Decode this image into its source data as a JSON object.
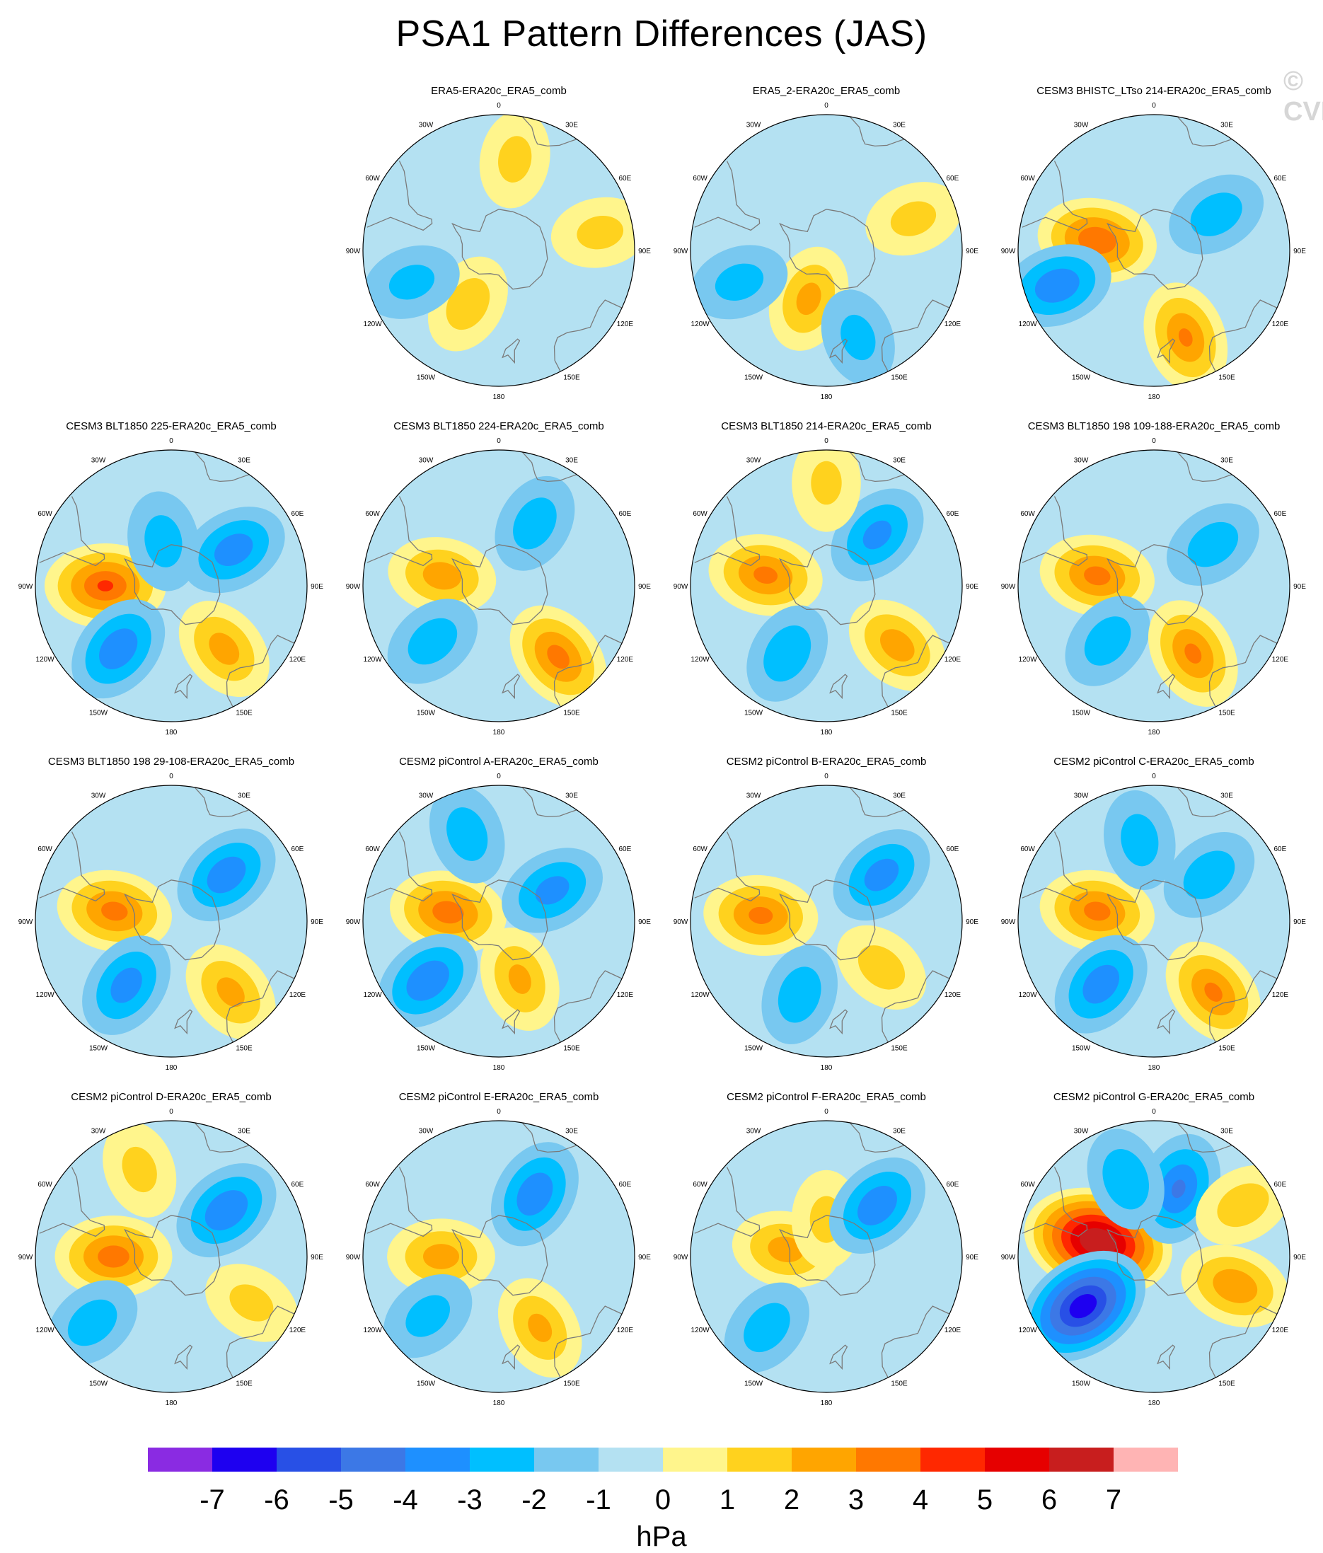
{
  "title": "PSA1 Pattern Differences (JAS)",
  "watermark": "© CVDP",
  "units": "hPa",
  "longitude_labels": [
    "0",
    "30E",
    "60E",
    "90E",
    "120E",
    "150E",
    "180",
    "150W",
    "120W",
    "90W",
    "60W",
    "30W"
  ],
  "colorbar": {
    "colors": [
      "#8a2be2",
      "#1e00f0",
      "#2850e6",
      "#3c78e6",
      "#1e90ff",
      "#00bfff",
      "#78c8f0",
      "#b4e1f2",
      "#fff58c",
      "#ffd21e",
      "#ffa500",
      "#ff7800",
      "#ff2800",
      "#e60000",
      "#c81e1e",
      "#ffb4b4"
    ],
    "tick_labels": [
      "-7",
      "-6",
      "-5",
      "-4",
      "-3",
      "-2",
      "-1",
      "0",
      "1",
      "2",
      "3",
      "4",
      "5",
      "6",
      "7"
    ]
  },
  "panels": [
    {
      "title": "ERA5-ERA20c_ERA5_comb",
      "row": 0,
      "col": 1,
      "features": [
        {
          "kind": "pos",
          "lon": 10,
          "lat": -45,
          "amp": 1.3
        },
        {
          "kind": "pos",
          "lon": 80,
          "lat": -40,
          "amp": 1.3
        },
        {
          "kind": "pos",
          "lon": -150,
          "lat": -60,
          "amp": 1.6
        },
        {
          "kind": "neg",
          "lon": -110,
          "lat": -45,
          "amp": 1.3
        }
      ]
    },
    {
      "title": "ERA5_2-ERA20c_ERA5_comb",
      "row": 0,
      "col": 2,
      "features": [
        {
          "kind": "pos",
          "lon": 70,
          "lat": -45,
          "amp": 1.3
        },
        {
          "kind": "pos",
          "lon": -160,
          "lat": -65,
          "amp": 2.3
        },
        {
          "kind": "neg",
          "lon": -110,
          "lat": -45,
          "amp": 1.4
        },
        {
          "kind": "neg",
          "lon": 160,
          "lat": -45,
          "amp": 1.3
        }
      ]
    },
    {
      "title": "CESM3 BHISTC_LTso 214-ERA20c_ERA5_comb",
      "row": 0,
      "col": 3,
      "features": [
        {
          "kind": "pos",
          "lon": -80,
          "lat": -62,
          "amp": 3.8
        },
        {
          "kind": "neg",
          "lon": -110,
          "lat": -40,
          "amp": 2.8
        },
        {
          "kind": "pos",
          "lon": 160,
          "lat": -45,
          "amp": 3.0
        },
        {
          "kind": "neg",
          "lon": 60,
          "lat": -55,
          "amp": 1.6
        }
      ]
    },
    {
      "title": "CESM3 BLT1850 225-ERA20c_ERA5_comb",
      "row": 1,
      "col": 0,
      "features": [
        {
          "kind": "pos",
          "lon": -90,
          "lat": -58,
          "amp": 4.0
        },
        {
          "kind": "neg",
          "lon": -140,
          "lat": -50,
          "amp": 2.8
        },
        {
          "kind": "pos",
          "lon": 140,
          "lat": -50,
          "amp": 2.4
        },
        {
          "kind": "neg",
          "lon": 60,
          "lat": -55,
          "amp": 2.6
        },
        {
          "kind": "neg",
          "lon": -10,
          "lat": -68,
          "amp": 1.5
        }
      ]
    },
    {
      "title": "CESM3 BLT1850 224-ERA20c_ERA5_comb",
      "row": 1,
      "col": 1,
      "features": [
        {
          "kind": "pos",
          "lon": -80,
          "lat": -62,
          "amp": 2.5
        },
        {
          "kind": "pos",
          "lon": 140,
          "lat": -45,
          "amp": 3.3
        },
        {
          "kind": "neg",
          "lon": -130,
          "lat": -48,
          "amp": 1.6
        },
        {
          "kind": "neg",
          "lon": 30,
          "lat": -55,
          "amp": 1.6
        }
      ]
    },
    {
      "title": "CESM3 BLT1850 214-ERA20c_ERA5_comb",
      "row": 1,
      "col": 2,
      "features": [
        {
          "kind": "pos",
          "lon": -80,
          "lat": -60,
          "amp": 3.2
        },
        {
          "kind": "neg",
          "lon": -150,
          "lat": -52,
          "amp": 1.8
        },
        {
          "kind": "pos",
          "lon": 130,
          "lat": -45,
          "amp": 2.5
        },
        {
          "kind": "neg",
          "lon": 45,
          "lat": -55,
          "amp": 2.3
        },
        {
          "kind": "pos",
          "lon": 0,
          "lat": -40,
          "amp": 1.2
        }
      ]
    },
    {
      "title": "CESM3 BLT1850 198 109-188-ERA20c_ERA5_comb",
      "row": 1,
      "col": 3,
      "features": [
        {
          "kind": "pos",
          "lon": -80,
          "lat": -62,
          "amp": 3.3
        },
        {
          "kind": "neg",
          "lon": -140,
          "lat": -55,
          "amp": 1.6
        },
        {
          "kind": "pos",
          "lon": 150,
          "lat": -52,
          "amp": 3.1
        },
        {
          "kind": "neg",
          "lon": 55,
          "lat": -55,
          "amp": 1.6
        }
      ]
    },
    {
      "title": "CESM3 BLT1850 198 29-108-ERA20c_ERA5_comb",
      "row": 2,
      "col": 0,
      "features": [
        {
          "kind": "pos",
          "lon": -80,
          "lat": -62,
          "amp": 3.3
        },
        {
          "kind": "neg",
          "lon": -145,
          "lat": -52,
          "amp": 2.5
        },
        {
          "kind": "pos",
          "lon": 140,
          "lat": -45,
          "amp": 2.3
        },
        {
          "kind": "neg",
          "lon": 50,
          "lat": -55,
          "amp": 2.7
        }
      ]
    },
    {
      "title": "CESM2 piControl A-ERA20c_ERA5_comb",
      "row": 2,
      "col": 1,
      "features": [
        {
          "kind": "pos",
          "lon": -80,
          "lat": -65,
          "amp": 3.5
        },
        {
          "kind": "neg",
          "lon": -130,
          "lat": -45,
          "amp": 2.9
        },
        {
          "kind": "pos",
          "lon": 160,
          "lat": -60,
          "amp": 2.2
        },
        {
          "kind": "neg",
          "lon": 60,
          "lat": -60,
          "amp": 2.4
        },
        {
          "kind": "neg",
          "lon": -20,
          "lat": -45,
          "amp": 1.6
        }
      ]
    },
    {
      "title": "CESM2 piControl B-ERA20c_ERA5_comb",
      "row": 2,
      "col": 2,
      "features": [
        {
          "kind": "pos",
          "lon": -85,
          "lat": -58,
          "amp": 3.2
        },
        {
          "kind": "neg",
          "lon": -160,
          "lat": -52,
          "amp": 1.7
        },
        {
          "kind": "neg",
          "lon": 50,
          "lat": -55,
          "amp": 2.5
        },
        {
          "kind": "pos",
          "lon": 130,
          "lat": -55,
          "amp": 1.5
        }
      ]
    },
    {
      "title": "CESM2 piControl C-ERA20c_ERA5_comb",
      "row": 2,
      "col": 3,
      "features": [
        {
          "kind": "pos",
          "lon": -80,
          "lat": -62,
          "amp": 3.3
        },
        {
          "kind": "neg",
          "lon": -140,
          "lat": -50,
          "amp": 2.7
        },
        {
          "kind": "pos",
          "lon": 140,
          "lat": -45,
          "amp": 3.1
        },
        {
          "kind": "neg",
          "lon": 50,
          "lat": -55,
          "amp": 1.7
        },
        {
          "kind": "neg",
          "lon": -10,
          "lat": -50,
          "amp": 1.5
        }
      ]
    },
    {
      "title": "CESM2 piControl D-ERA20c_ERA5_comb",
      "row": 3,
      "col": 0,
      "features": [
        {
          "kind": "pos",
          "lon": -90,
          "lat": -62,
          "amp": 3.5
        },
        {
          "kind": "neg",
          "lon": -130,
          "lat": -40,
          "amp": 1.6
        },
        {
          "kind": "neg",
          "lon": 50,
          "lat": -55,
          "amp": 2.9
        },
        {
          "kind": "pos",
          "lon": 120,
          "lat": -45,
          "amp": 1.3
        },
        {
          "kind": "pos",
          "lon": -20,
          "lat": -45,
          "amp": 1.3
        }
      ]
    },
    {
      "title": "CESM2 piControl E-ERA20c_ERA5_comb",
      "row": 3,
      "col": 1,
      "features": [
        {
          "kind": "pos",
          "lon": -90,
          "lat": -62,
          "amp": 2.4
        },
        {
          "kind": "neg",
          "lon": 30,
          "lat": -55,
          "amp": 2.8
        },
        {
          "kind": "pos",
          "lon": 150,
          "lat": -50,
          "amp": 2.2
        },
        {
          "kind": "neg",
          "lon": -130,
          "lat": -45,
          "amp": 1.4
        }
      ]
    },
    {
      "title": "CESM2 piControl F-ERA20c_ERA5_comb",
      "row": 3,
      "col": 2,
      "features": [
        {
          "kind": "pos",
          "lon": -80,
          "lat": -70,
          "amp": 2.4
        },
        {
          "kind": "pos",
          "lon": 0,
          "lat": -72,
          "amp": 1.3
        },
        {
          "kind": "neg",
          "lon": 45,
          "lat": -55,
          "amp": 2.8
        },
        {
          "kind": "neg",
          "lon": -140,
          "lat": -45,
          "amp": 1.6
        }
      ]
    },
    {
      "title": "CESM2 piControl G-ERA20c_ERA5_comb",
      "row": 3,
      "col": 3,
      "features": [
        {
          "kind": "pos",
          "lon": -75,
          "lat": -62,
          "amp": 7.4
        },
        {
          "kind": "neg",
          "lon": -125,
          "lat": -48,
          "amp": 5.8
        },
        {
          "kind": "neg",
          "lon": 20,
          "lat": -55,
          "amp": 3.0
        },
        {
          "kind": "neg",
          "lon": -20,
          "lat": -50,
          "amp": 1.9
        },
        {
          "kind": "pos",
          "lon": 110,
          "lat": -48,
          "amp": 2.8
        },
        {
          "kind": "pos",
          "lon": 60,
          "lat": -40,
          "amp": 1.6
        }
      ]
    }
  ]
}
